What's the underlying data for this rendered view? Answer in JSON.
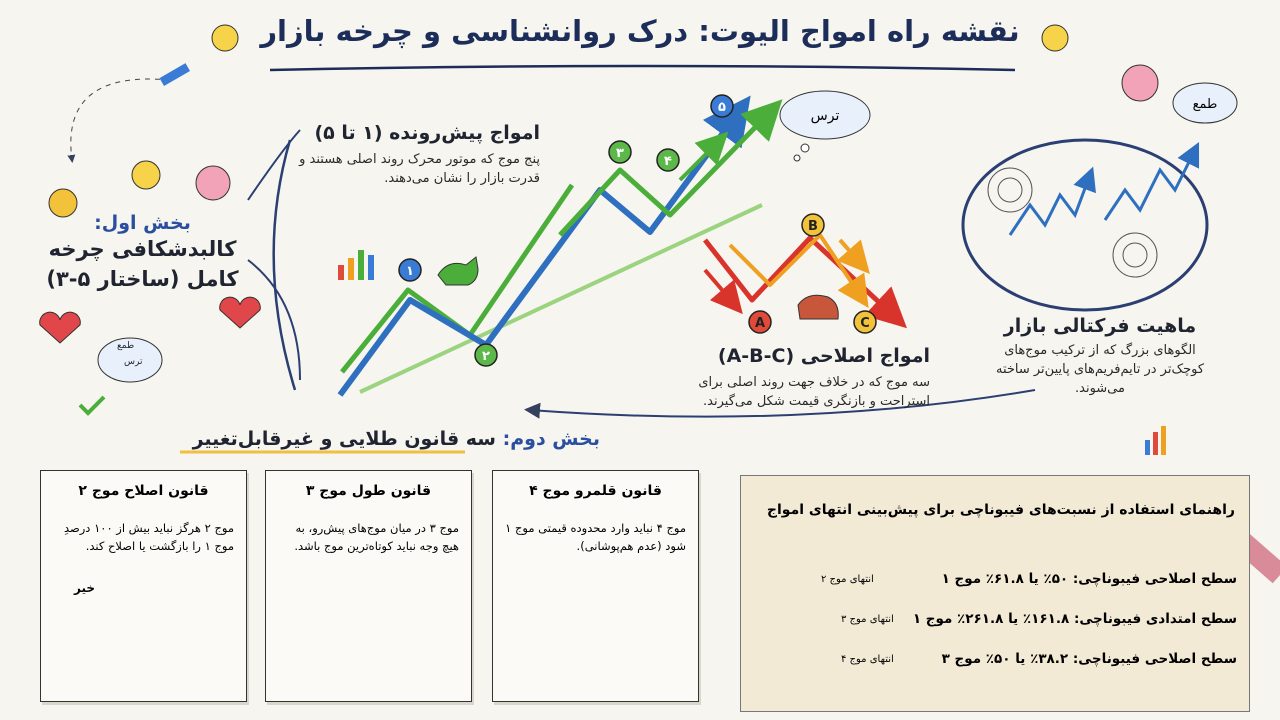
{
  "header": {
    "title": "نقشه راه امواج الیوت: درک روانشناسی و چرخه بازار"
  },
  "part1": {
    "label": "بخش اول:",
    "title": "کالبدشکافی چرخه کامل (ساختار ۵-۳)",
    "greed": "طمع",
    "fear": "ترس"
  },
  "waves": {
    "impulse_labels": [
      "۱",
      "۲",
      "۳",
      "۴",
      "۵"
    ],
    "corrective_labels": [
      "A",
      "B",
      "C"
    ],
    "fear_cloud": "ترس",
    "greed_cloud": "طمع"
  },
  "impulse": {
    "title": "امواج پیش‌رونده (۱ تا ۵)",
    "description": "پنج موج که موتور محرک روند اصلی هستند و قدرت بازار را نشان می‌دهند."
  },
  "corrective": {
    "title": "امواج اصلاحی (A-B-C)",
    "description": "سه موج که در خلاف جهت روند اصلی برای استراحت و بازنگری قیمت شکل می‌گیرند."
  },
  "fractal": {
    "title": "ماهیت فرکتالی بازار",
    "description": "الگوهای بزرگ که از ترکیب موج‌های کوچک‌تر در تایم‌فریم‌های پایین‌تر ساخته می‌شوند."
  },
  "part2": {
    "label": "بخش دوم:",
    "title": "سه قانون طلایی و غیرقابل‌تغییر"
  },
  "rules": [
    {
      "title": "قانون اصلاح موج ۲",
      "text": "موج ۲ هرگز نباید بیش از ۱۰۰ درصدِ موج ۱ را بازگشت یا اصلاح کند.",
      "stamp": "خیر"
    },
    {
      "title": "قانون طول موج ۳",
      "text": "موج ۳ در میان موج‌های پیش‌رو، به هیچ وجه نباید کوتاه‌ترین موج باشد."
    },
    {
      "title": "قانون قلمرو موج ۴",
      "text": "موج ۴ نباید وارد محدوده قیمتی موج ۱ شود (عدم هم‌پوشانی)."
    }
  ],
  "fibonacci": {
    "title": "راهنمای استفاده از نسبت‌های فیبوناچی برای پیش‌بینی انتهای امواج",
    "rows": [
      {
        "text": "سطح اصلاحی فیبوناچی: ۵۰٪ یا ۶۱.۸٪ موج ۱",
        "target": "انتهای موج ۲"
      },
      {
        "text": "سطح امتدادی فیبوناچی: ۱۶۱.۸٪ یا ۲۶۱.۸٪ موج ۱",
        "target": "انتهای موج ۳"
      },
      {
        "text": "سطح اصلاحی فیبوناچی: ۳۸.۲٪ یا ۵۰٪ موج ۳",
        "target": "انتهای موج ۴"
      }
    ]
  }
}
